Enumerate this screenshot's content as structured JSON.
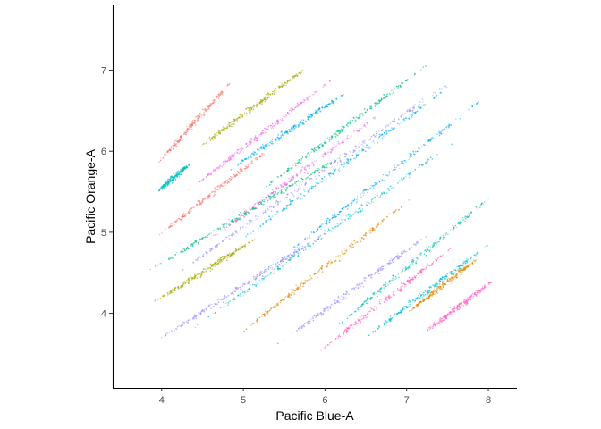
{
  "chart_data": {
    "type": "scatter",
    "title": "",
    "xlabel": "Pacific Blue-A",
    "ylabel": "Pacific Orange-A",
    "xlim": [
      3.4,
      8.35
    ],
    "ylim": [
      3.08,
      7.8
    ],
    "x_ticks": [
      4,
      5,
      6,
      7,
      8
    ],
    "y_ticks": [
      4,
      5,
      6,
      7
    ],
    "x_tick_labels": [
      "4",
      "5",
      "6",
      "7",
      "8"
    ],
    "y_tick_labels": [
      "4",
      "5",
      "6",
      "7"
    ],
    "grid": false,
    "legend": "none",
    "point_size": "tiny",
    "note_series": "Diagonal bands of densely clustered colored points (unlabeled populations); slope approx. 1.",
    "series": [
      {
        "color": "#F8766D",
        "x": [
          3.9,
          4.85
        ],
        "y": [
          5.8,
          6.85
        ]
      },
      {
        "color": "#A3A500",
        "x": [
          4.4,
          5.8
        ],
        "y": [
          6.0,
          7.05
        ]
      },
      {
        "color": "#00BFC4",
        "x": [
          3.95,
          4.35
        ],
        "y": [
          5.5,
          5.85
        ]
      },
      {
        "color": "#F564E3",
        "x": [
          4.3,
          6.1
        ],
        "y": [
          5.5,
          6.9
        ]
      },
      {
        "color": "#00B0F6",
        "x": [
          4.8,
          6.3
        ],
        "y": [
          5.75,
          6.75
        ]
      },
      {
        "color": "#F8766D",
        "x": [
          3.95,
          5.4
        ],
        "y": [
          4.95,
          6.1
        ]
      },
      {
        "color": "#00BF7D",
        "x": [
          5.2,
          7.3
        ],
        "y": [
          5.5,
          7.1
        ]
      },
      {
        "color": "#E76BF3",
        "x": [
          4.5,
          6.8
        ],
        "y": [
          4.85,
          6.55
        ]
      },
      {
        "color": "#00BF7D",
        "x": [
          3.8,
          6.3
        ],
        "y": [
          4.5,
          6.0
        ]
      },
      {
        "color": "#9590FF",
        "x": [
          4.2,
          7.6
        ],
        "y": [
          4.5,
          6.9
        ]
      },
      {
        "color": "#A3A500",
        "x": [
          3.85,
          5.2
        ],
        "y": [
          4.1,
          4.95
        ]
      },
      {
        "color": "#00B0F6",
        "x": [
          4.9,
          7.6
        ],
        "y": [
          4.85,
          6.85
        ]
      },
      {
        "color": "#9590FF",
        "x": [
          3.85,
          6.1
        ],
        "y": [
          3.6,
          5.05
        ]
      },
      {
        "color": "#00BFC4",
        "x": [
          4.3,
          7.7
        ],
        "y": [
          3.75,
          6.2
        ]
      },
      {
        "color": "#00A9FF",
        "x": [
          5.3,
          8.0
        ],
        "y": [
          4.55,
          6.7
        ]
      },
      {
        "color": "#E58700",
        "x": [
          4.9,
          7.1
        ],
        "y": [
          3.7,
          5.45
        ]
      },
      {
        "color": "#9590FF",
        "x": [
          5.4,
          7.3
        ],
        "y": [
          3.6,
          5.0
        ]
      },
      {
        "color": "#00C0AF",
        "x": [
          6.1,
          8.1
        ],
        "y": [
          3.8,
          5.5
        ]
      },
      {
        "color": "#FF62BC",
        "x": [
          5.9,
          7.6
        ],
        "y": [
          3.5,
          4.85
        ]
      },
      {
        "color": "#00BCD8",
        "x": [
          6.5,
          8.0
        ],
        "y": [
          3.7,
          4.85
        ]
      },
      {
        "color": "#E58700",
        "x": [
          7.0,
          7.9
        ],
        "y": [
          4.0,
          4.7
        ]
      },
      {
        "color": "#FF61C3",
        "x": [
          7.2,
          8.05
        ],
        "y": [
          3.75,
          4.4
        ]
      }
    ]
  }
}
